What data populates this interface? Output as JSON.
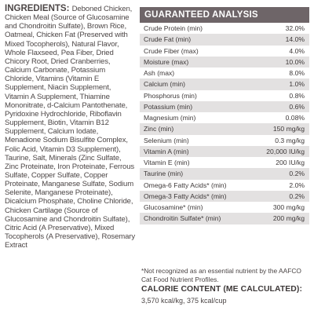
{
  "ingredients": {
    "heading": "INGREDIENTS:",
    "text": "Deboned Chicken, Chicken Meal (Source of Glucosamine and Chondroitin Sulfate), Brown Rice, Oatmeal, Chicken Fat (Preserved with Mixed Tocopherols), Natural Flavor, Whole Flaxseed, Pea Fiber, Dried Chicory Root, Dried Cranberries, Calcium Carbonate, Potassium Chloride, Vitamins (Vitamin E Supplement, Niacin Supplement, Vitamin A Supplement, Thiamine Mononitrate, d-Calcium Pantothenate, Pyridoxine Hydrochloride, Riboflavin Supplement, Biotin, Vitamin B12 Supplement, Calcium Iodate, Menadione Sodium Bisulfite Complex, Folic Acid, Vitamin D3 Supplement), Taurine, Salt, Minerals (Zinc Sulfate, Zinc Proteinate, Iron Proteinate, Ferrous Sulfate, Copper Sulfate, Copper Proteinate, Manganese Sulfate, Sodium Selenite, Manganese Proteinate), Dicalcium Phosphate, Choline Chloride, Chicken Cartilage (Source of Glucosamine and Chondroitin Sulfate), Citric Acid (A Preservative), Mixed Tocopherols (A Preservative), Rosemary Extract"
  },
  "guaranteed_analysis": {
    "title": "GUARANTEED ANALYSIS",
    "rows": [
      {
        "label": "Crude Protein (min)",
        "value": "32.0%"
      },
      {
        "label": "Crude Fat (min)",
        "value": "14.0%"
      },
      {
        "label": "Crude Fiber (max)",
        "value": "4.0%"
      },
      {
        "label": "Moisture (max)",
        "value": "10.0%"
      },
      {
        "label": "Ash (max)",
        "value": "8.0%"
      },
      {
        "label": "Calcium (min)",
        "value": "1.0%"
      },
      {
        "label": "Phosphorus (min)",
        "value": "0.8%"
      },
      {
        "label": "Potassium (min)",
        "value": "0.6%"
      },
      {
        "label": "Magnesium (min)",
        "value": "0.08%"
      },
      {
        "label": "Zinc (min)",
        "value": "150 mg/kg"
      },
      {
        "label": "Selenium (min)",
        "value": "0.3 mg/kg"
      },
      {
        "label": "Vitamin A (min)",
        "value": "20,000 IU/kg"
      },
      {
        "label": "Vitamin E (min)",
        "value": "200 IU/kg"
      },
      {
        "label": "Taurine (min)",
        "value": "0.2%"
      },
      {
        "label": "Omega-6 Fatty Acids* (min)",
        "value": "2.0%"
      },
      {
        "label": "Omega-3 Fatty Acids* (min)",
        "value": "0.2%"
      },
      {
        "label": "Glucosamine* (min)",
        "value": "300 mg/kg"
      },
      {
        "label": "Chondroitin Sulfate* (min)",
        "value": "200 mg/kg"
      }
    ],
    "footnote": "*Not recognized as an essential nutrient by the AAFCO Cat Food Nutrient Profiles."
  },
  "calorie_content": {
    "title": "CALORIE CONTENT (ME CALCULATED):",
    "value": "3,570 kcal/kg, 375 kcal/cup"
  },
  "colors": {
    "header_bg": "#6e6568",
    "row_shade": "#e3e1e1",
    "text": "#4a4444"
  }
}
